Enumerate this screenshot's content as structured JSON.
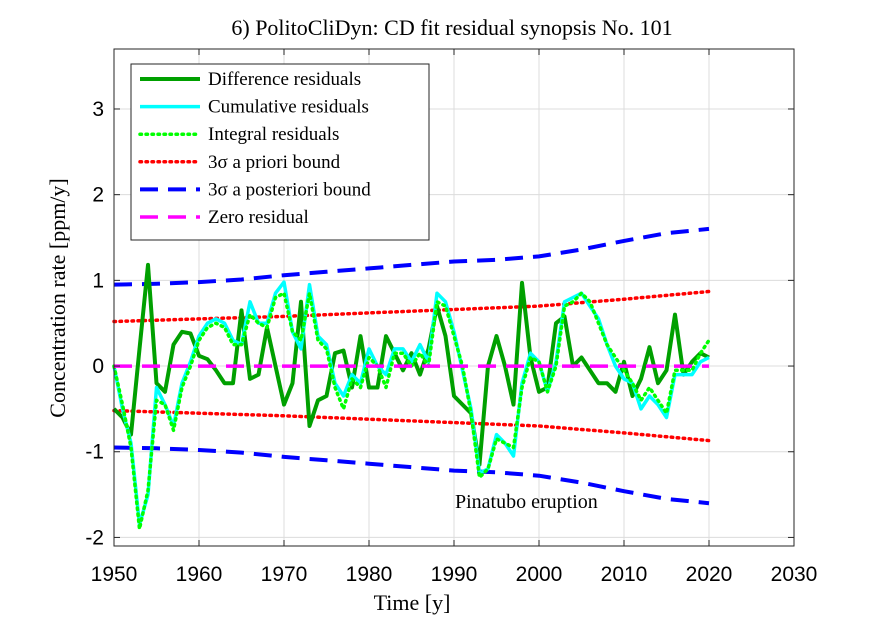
{
  "chart_data": {
    "type": "line",
    "title": "6) PolitoCliDyn: CD fit residual synopsis No. 101",
    "xlabel": "Time [y]",
    "ylabel": "Concentration rate [ppm/y]",
    "xlim": [
      1950,
      2030
    ],
    "ylim": [
      -2.1,
      3.7
    ],
    "xticks": [
      1950,
      1960,
      1970,
      1980,
      1990,
      2000,
      2010,
      2020,
      2030
    ],
    "yticks": [
      -2,
      -1,
      0,
      1,
      2,
      3
    ],
    "xtick_labels": [
      "1950",
      "1960",
      "1970",
      "1980",
      "1990",
      "2000",
      "2010",
      "2020",
      "2030"
    ],
    "ytick_labels": [
      "-2",
      "-1",
      "0",
      "1",
      "2",
      "3"
    ],
    "grid": true,
    "legend_position": "top-left",
    "annotation": {
      "text": "Pinatubo eruption",
      "x": 1990,
      "y": -1.6
    },
    "legend": [
      {
        "name": "Difference residuals",
        "color": "#00a000",
        "style": "solid"
      },
      {
        "name": "Cumulative residuals",
        "color": "#00ffff",
        "style": "solid"
      },
      {
        "name": "Integral residuals",
        "color": "#00ff00",
        "style": "dotted"
      },
      {
        "name": "3σ a priori bound",
        "color": "#ff0000",
        "style": "dotted"
      },
      {
        "name": "3σ a posteriori bound",
        "color": "#0000ff",
        "style": "dashed"
      },
      {
        "name": "Zero residual",
        "color": "#ff00ff",
        "style": "dashed"
      }
    ],
    "series": [
      {
        "name": "Difference residuals",
        "color": "#00a000",
        "x": [
          1950,
          1951,
          1952,
          1953,
          1954,
          1955,
          1956,
          1957,
          1958,
          1959,
          1960,
          1961,
          1962,
          1963,
          1964,
          1965,
          1966,
          1967,
          1968,
          1969,
          1970,
          1971,
          1972,
          1973,
          1974,
          1975,
          1976,
          1977,
          1978,
          1979,
          1980,
          1981,
          1982,
          1983,
          1984,
          1985,
          1986,
          1987,
          1988,
          1989,
          1990,
          1991,
          1992,
          1993,
          1994,
          1995,
          1996,
          1997,
          1998,
          1999,
          2000,
          2001,
          2002,
          2003,
          2004,
          2005,
          2006,
          2007,
          2008,
          2009,
          2010,
          2011,
          2012,
          2013,
          2014,
          2015,
          2016,
          2017,
          2018,
          2019,
          2020
        ],
        "y": [
          -0.5,
          -0.6,
          -0.8,
          0.2,
          1.18,
          -0.2,
          -0.3,
          0.25,
          0.4,
          0.38,
          0.12,
          0.08,
          -0.05,
          -0.2,
          -0.2,
          0.65,
          -0.15,
          -0.1,
          0.45,
          0.0,
          -0.45,
          -0.2,
          0.75,
          -0.7,
          -0.4,
          -0.35,
          0.15,
          0.18,
          -0.25,
          0.35,
          -0.25,
          -0.25,
          0.35,
          0.15,
          -0.05,
          0.15,
          -0.1,
          0.2,
          0.7,
          0.35,
          -0.35,
          -0.45,
          -0.55,
          -1.15,
          0.0,
          0.35,
          0.0,
          -0.45,
          0.97,
          0.1,
          -0.3,
          -0.25,
          0.5,
          0.58,
          0.0,
          0.1,
          -0.05,
          -0.2,
          -0.2,
          -0.3,
          0.05,
          -0.35,
          -0.15,
          0.22,
          -0.2,
          -0.05,
          0.6,
          -0.1,
          0.05,
          0.15,
          0.1
        ]
      },
      {
        "name": "Cumulative residuals",
        "color": "#00ffff",
        "x": [
          1950,
          1951,
          1952,
          1953,
          1954,
          1955,
          1956,
          1957,
          1958,
          1959,
          1960,
          1961,
          1962,
          1963,
          1964,
          1965,
          1966,
          1967,
          1968,
          1969,
          1970,
          1971,
          1972,
          1973,
          1974,
          1975,
          1976,
          1977,
          1978,
          1979,
          1980,
          1981,
          1982,
          1983,
          1984,
          1985,
          1986,
          1987,
          1988,
          1989,
          1990,
          1991,
          1992,
          1993,
          1994,
          1995,
          1996,
          1997,
          1998,
          1999,
          2000,
          2001,
          2002,
          2003,
          2004,
          2005,
          2006,
          2007,
          2008,
          2009,
          2010,
          2011,
          2012,
          2013,
          2014,
          2015,
          2016,
          2017,
          2018,
          2019,
          2020
        ],
        "y": [
          0.0,
          -0.5,
          -0.9,
          -1.85,
          -1.5,
          -0.25,
          -0.45,
          -0.7,
          -0.2,
          0.05,
          0.35,
          0.5,
          0.55,
          0.5,
          0.3,
          0.25,
          0.75,
          0.5,
          0.5,
          0.85,
          0.98,
          0.4,
          0.2,
          0.95,
          0.35,
          0.25,
          -0.2,
          -0.35,
          -0.1,
          -0.2,
          0.2,
          0.0,
          -0.1,
          0.2,
          0.2,
          0.05,
          0.25,
          0.05,
          0.85,
          0.75,
          0.4,
          -0.05,
          -0.5,
          -1.25,
          -1.2,
          -0.8,
          -0.9,
          -1.05,
          -0.2,
          0.15,
          0.05,
          -0.3,
          0.05,
          0.75,
          0.8,
          0.85,
          0.7,
          0.55,
          0.25,
          0.0,
          -0.15,
          -0.2,
          -0.5,
          -0.35,
          -0.45,
          -0.6,
          -0.1,
          -0.1,
          -0.1,
          0.05,
          0.1
        ]
      },
      {
        "name": "Integral residuals",
        "color": "#00ff00",
        "x": [
          1950,
          1951,
          1952,
          1953,
          1954,
          1955,
          1956,
          1957,
          1958,
          1959,
          1960,
          1961,
          1962,
          1963,
          1964,
          1965,
          1966,
          1967,
          1968,
          1969,
          1970,
          1971,
          1972,
          1973,
          1974,
          1975,
          1976,
          1977,
          1978,
          1979,
          1980,
          1981,
          1982,
          1983,
          1984,
          1985,
          1986,
          1987,
          1988,
          1989,
          1990,
          1991,
          1992,
          1993,
          1994,
          1995,
          1996,
          1997,
          1998,
          1999,
          2000,
          2001,
          2002,
          2003,
          2004,
          2005,
          2006,
          2007,
          2008,
          2009,
          2010,
          2011,
          2012,
          2013,
          2014,
          2015,
          2016,
          2017,
          2018,
          2019,
          2020
        ],
        "y": [
          0.0,
          -0.45,
          -0.95,
          -1.9,
          -1.45,
          -0.4,
          -0.45,
          -0.75,
          -0.25,
          0.0,
          0.3,
          0.45,
          0.5,
          0.45,
          0.25,
          0.25,
          0.6,
          0.5,
          0.45,
          0.8,
          0.85,
          0.4,
          0.3,
          0.85,
          0.3,
          0.2,
          -0.25,
          -0.5,
          -0.15,
          -0.25,
          0.1,
          0.0,
          -0.25,
          0.15,
          0.15,
          0.0,
          0.15,
          0.0,
          0.75,
          0.7,
          0.35,
          0.0,
          -0.55,
          -1.3,
          -1.2,
          -0.85,
          -0.9,
          -0.95,
          -0.25,
          0.1,
          0.05,
          -0.3,
          0.0,
          0.7,
          0.75,
          0.85,
          0.75,
          0.5,
          0.25,
          0.1,
          -0.05,
          -0.2,
          -0.4,
          -0.25,
          -0.4,
          -0.55,
          -0.05,
          -0.05,
          -0.05,
          0.15,
          0.3
        ]
      },
      {
        "name": "3σ a priori bound (upper)",
        "color": "#ff0000",
        "x": [
          1950,
          1960,
          1970,
          1980,
          1990,
          2000,
          2010,
          2020
        ],
        "y": [
          0.52,
          0.55,
          0.58,
          0.62,
          0.66,
          0.7,
          0.78,
          0.87
        ]
      },
      {
        "name": "3σ a priori bound (lower)",
        "color": "#ff0000",
        "x": [
          1950,
          1960,
          1970,
          1980,
          1990,
          2000,
          2010,
          2020
        ],
        "y": [
          -0.52,
          -0.55,
          -0.58,
          -0.62,
          -0.66,
          -0.7,
          -0.78,
          -0.87
        ]
      },
      {
        "name": "3σ a posteriori bound (upper)",
        "color": "#0000ff",
        "x": [
          1950,
          1955,
          1960,
          1965,
          1970,
          1975,
          1980,
          1985,
          1990,
          1995,
          2000,
          2005,
          2010,
          2015,
          2020
        ],
        "y": [
          0.95,
          0.96,
          0.98,
          1.01,
          1.06,
          1.1,
          1.14,
          1.18,
          1.22,
          1.24,
          1.28,
          1.36,
          1.46,
          1.55,
          1.6
        ]
      },
      {
        "name": "3σ a posteriori bound (lower)",
        "color": "#0000ff",
        "x": [
          1950,
          1955,
          1960,
          1965,
          1970,
          1975,
          1980,
          1985,
          1990,
          1995,
          2000,
          2005,
          2010,
          2015,
          2020
        ],
        "y": [
          -0.95,
          -0.96,
          -0.98,
          -1.01,
          -1.06,
          -1.1,
          -1.14,
          -1.18,
          -1.22,
          -1.24,
          -1.28,
          -1.36,
          -1.46,
          -1.55,
          -1.6
        ]
      },
      {
        "name": "Zero residual",
        "color": "#ff00ff",
        "x": [
          1950,
          2020
        ],
        "y": [
          0,
          0
        ]
      }
    ]
  }
}
